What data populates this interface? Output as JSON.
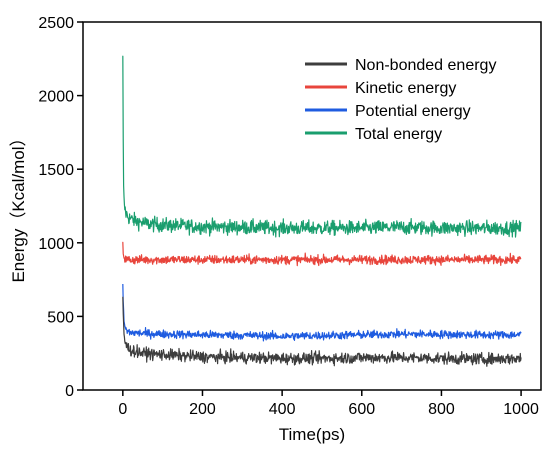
{
  "chart_data": {
    "type": "line",
    "xlabel": "Time(ps)",
    "ylabel": "Energy（Kcal/mol）",
    "xlim": [
      -100,
      1050
    ],
    "ylim": [
      0,
      2500
    ],
    "xticks": [
      0,
      200,
      400,
      600,
      800,
      1000
    ],
    "yticks": [
      0,
      500,
      1000,
      1500,
      2000,
      2500
    ],
    "grid": false,
    "legend_position": "top-right",
    "series": [
      {
        "name": "Non-bonded energy",
        "color": "#3d3d3d",
        "x": [
          0,
          1,
          3,
          6,
          10,
          20,
          50,
          100,
          200,
          300,
          400,
          500,
          600,
          700,
          800,
          900,
          1000
        ],
        "values": [
          630,
          520,
          380,
          320,
          295,
          270,
          250,
          240,
          225,
          220,
          215,
          215,
          220,
          220,
          215,
          210,
          215
        ],
        "noise": 28
      },
      {
        "name": "Kinetic energy",
        "color": "#e8453c",
        "x": [
          0,
          1,
          3,
          6,
          10,
          50,
          100,
          200,
          300,
          400,
          500,
          600,
          700,
          800,
          900,
          1000
        ],
        "values": [
          1000,
          930,
          900,
          890,
          885,
          885,
          885,
          885,
          885,
          885,
          885,
          885,
          885,
          885,
          885,
          885
        ],
        "noise": 22
      },
      {
        "name": "Potential energy",
        "color": "#1f5ce0",
        "x": [
          0,
          1,
          3,
          6,
          10,
          20,
          50,
          100,
          200,
          300,
          400,
          500,
          600,
          700,
          800,
          900,
          1000
        ],
        "values": [
          720,
          600,
          470,
          420,
          400,
          390,
          385,
          380,
          375,
          372,
          365,
          370,
          375,
          380,
          378,
          375,
          375
        ],
        "noise": 20
      },
      {
        "name": "Total energy",
        "color": "#1a9e6e",
        "x": [
          0,
          1,
          2,
          4,
          8,
          15,
          30,
          60,
          100,
          200,
          300,
          400,
          500,
          600,
          700,
          800,
          900,
          1000
        ],
        "values": [
          2260,
          1700,
          1380,
          1250,
          1200,
          1170,
          1150,
          1130,
          1120,
          1110,
          1105,
          1100,
          1100,
          1100,
          1105,
          1100,
          1100,
          1100
        ],
        "noise": 35
      }
    ]
  }
}
